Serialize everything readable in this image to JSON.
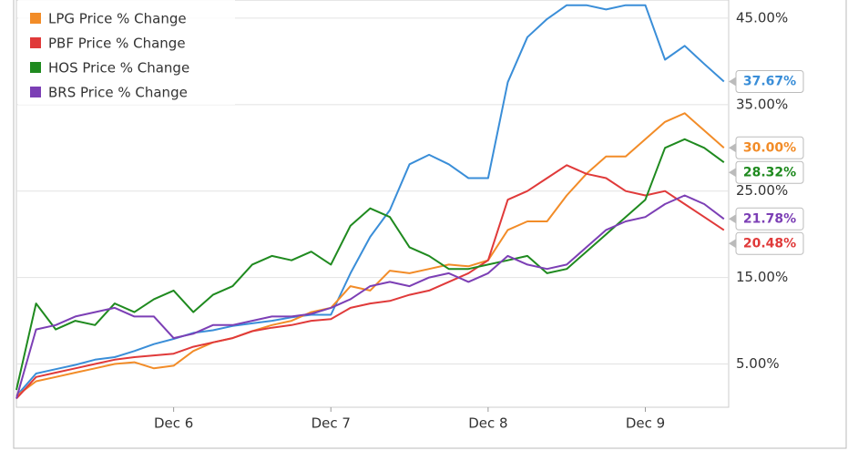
{
  "chart_data": {
    "type": "line",
    "x": [
      5.0,
      5.125,
      5.25,
      5.375,
      5.5,
      5.625,
      5.75,
      5.875,
      6.0,
      6.125,
      6.25,
      6.375,
      6.5,
      6.625,
      6.75,
      6.875,
      7.0,
      7.125,
      7.25,
      7.375,
      7.5,
      7.625,
      7.75,
      7.875,
      8.0,
      8.125,
      8.25,
      8.375,
      8.5,
      8.625,
      8.75,
      8.875,
      9.0,
      9.125,
      9.25,
      9.375,
      9.5
    ],
    "xlim": [
      5,
      9.53
    ],
    "xticks": [
      {
        "value": 6,
        "label": "Dec 6"
      },
      {
        "value": 7,
        "label": "Dec 7"
      },
      {
        "value": 8,
        "label": "Dec 8"
      },
      {
        "value": 9,
        "label": "Dec 9"
      }
    ],
    "ylim": [
      0,
      47.1
    ],
    "yticks": [
      {
        "value": 5,
        "label": "5.00%"
      },
      {
        "value": 15,
        "label": "15.00%"
      },
      {
        "value": 25,
        "label": "25.00%"
      },
      {
        "value": 35,
        "label": "35.00%"
      },
      {
        "value": 45,
        "label": "45.00%"
      }
    ],
    "grid": true,
    "legend": "top-left",
    "series": [
      {
        "color": "#3a8ed8",
        "values": [
          1.3,
          3.9,
          4.4,
          4.9,
          5.5,
          5.8,
          6.5,
          7.3,
          7.9,
          8.6,
          8.9,
          9.4,
          9.7,
          10,
          10.4,
          10.7,
          10.7,
          15.5,
          19.7,
          22.8,
          28.1,
          29.2,
          28.1,
          26.5,
          26.5,
          37.6,
          42.8,
          44.9,
          46.5,
          46.5,
          46,
          46.5,
          46.5,
          40.2,
          41.8,
          39.7,
          37.67
        ],
        "value_labels": [
          null,
          null,
          null,
          null,
          null,
          null,
          null,
          null,
          null,
          null,
          null,
          null,
          null,
          null,
          null,
          null,
          null,
          null,
          null,
          null,
          null,
          null,
          null,
          null,
          null,
          null,
          null,
          null,
          null,
          null,
          null,
          null,
          null,
          null,
          null,
          null,
          "37.67%"
        ]
      },
      {
        "name": "LPG Price % Change",
        "color": "#f28c28",
        "values": [
          1.3,
          3,
          3.5,
          4,
          4.5,
          5,
          5.2,
          4.5,
          4.8,
          6.5,
          7.5,
          8,
          8.8,
          9.5,
          10,
          11,
          11.5,
          14,
          13.5,
          15.8,
          15.5,
          16,
          16.5,
          16.3,
          17,
          20.5,
          21.5,
          21.5,
          24.5,
          27,
          29,
          29,
          31,
          33,
          34,
          32,
          30
        ],
        "value_labels": [
          null,
          null,
          null,
          null,
          null,
          null,
          null,
          null,
          null,
          null,
          null,
          null,
          null,
          null,
          null,
          null,
          null,
          null,
          null,
          null,
          null,
          null,
          null,
          null,
          null,
          null,
          null,
          null,
          null,
          null,
          null,
          null,
          null,
          null,
          null,
          null,
          "30.00%"
        ]
      },
      {
        "name": "PBF Price % Change",
        "color": "#e03a3a",
        "values": [
          1,
          3.5,
          4,
          4.5,
          5,
          5.5,
          5.8,
          6,
          6.2,
          7,
          7.5,
          8,
          8.8,
          9.2,
          9.5,
          10,
          10.2,
          11.5,
          12,
          12.3,
          13,
          13.5,
          14.5,
          15.5,
          17,
          24,
          25,
          26.5,
          28,
          27,
          26.5,
          25,
          24.5,
          25,
          23.5,
          22,
          20.48
        ],
        "value_labels": [
          null,
          null,
          null,
          null,
          null,
          null,
          null,
          null,
          null,
          null,
          null,
          null,
          null,
          null,
          null,
          null,
          null,
          null,
          null,
          null,
          null,
          null,
          null,
          null,
          null,
          null,
          null,
          null,
          null,
          null,
          null,
          null,
          null,
          null,
          null,
          null,
          "20.48%"
        ]
      },
      {
        "name": "HOS Price % Change",
        "color": "#1f8a1f",
        "values": [
          2,
          12,
          9,
          10,
          9.5,
          12,
          11,
          12.5,
          13.5,
          11,
          13,
          14,
          16.5,
          17.5,
          17,
          18,
          16.5,
          21,
          23,
          22,
          18.5,
          17.5,
          16,
          16,
          16.5,
          17,
          17.5,
          15.5,
          16,
          18,
          20,
          22,
          24,
          30,
          31,
          30,
          28.32
        ],
        "value_labels": [
          null,
          null,
          null,
          null,
          null,
          null,
          null,
          null,
          null,
          null,
          null,
          null,
          null,
          null,
          null,
          null,
          null,
          null,
          null,
          null,
          null,
          null,
          null,
          null,
          null,
          null,
          null,
          null,
          null,
          null,
          null,
          null,
          null,
          null,
          null,
          null,
          "28.32%"
        ]
      },
      {
        "name": "BRS Price % Change",
        "color": "#7c3fb5",
        "values": [
          1,
          9,
          9.5,
          10.5,
          11,
          11.5,
          10.5,
          10.5,
          8,
          8.5,
          9.5,
          9.5,
          10,
          10.5,
          10.5,
          10.8,
          11.5,
          12.5,
          14,
          14.5,
          14,
          15,
          15.5,
          14.5,
          15.5,
          17.5,
          16.5,
          16,
          16.5,
          18.5,
          20.5,
          21.5,
          22,
          23.5,
          24.5,
          23.5,
          21.78
        ],
        "value_labels": [
          null,
          null,
          null,
          null,
          null,
          null,
          null,
          null,
          null,
          null,
          null,
          null,
          null,
          null,
          null,
          null,
          null,
          null,
          null,
          null,
          null,
          null,
          null,
          null,
          null,
          null,
          null,
          null,
          null,
          null,
          null,
          null,
          null,
          null,
          null,
          null,
          "21.78%"
        ]
      }
    ]
  }
}
